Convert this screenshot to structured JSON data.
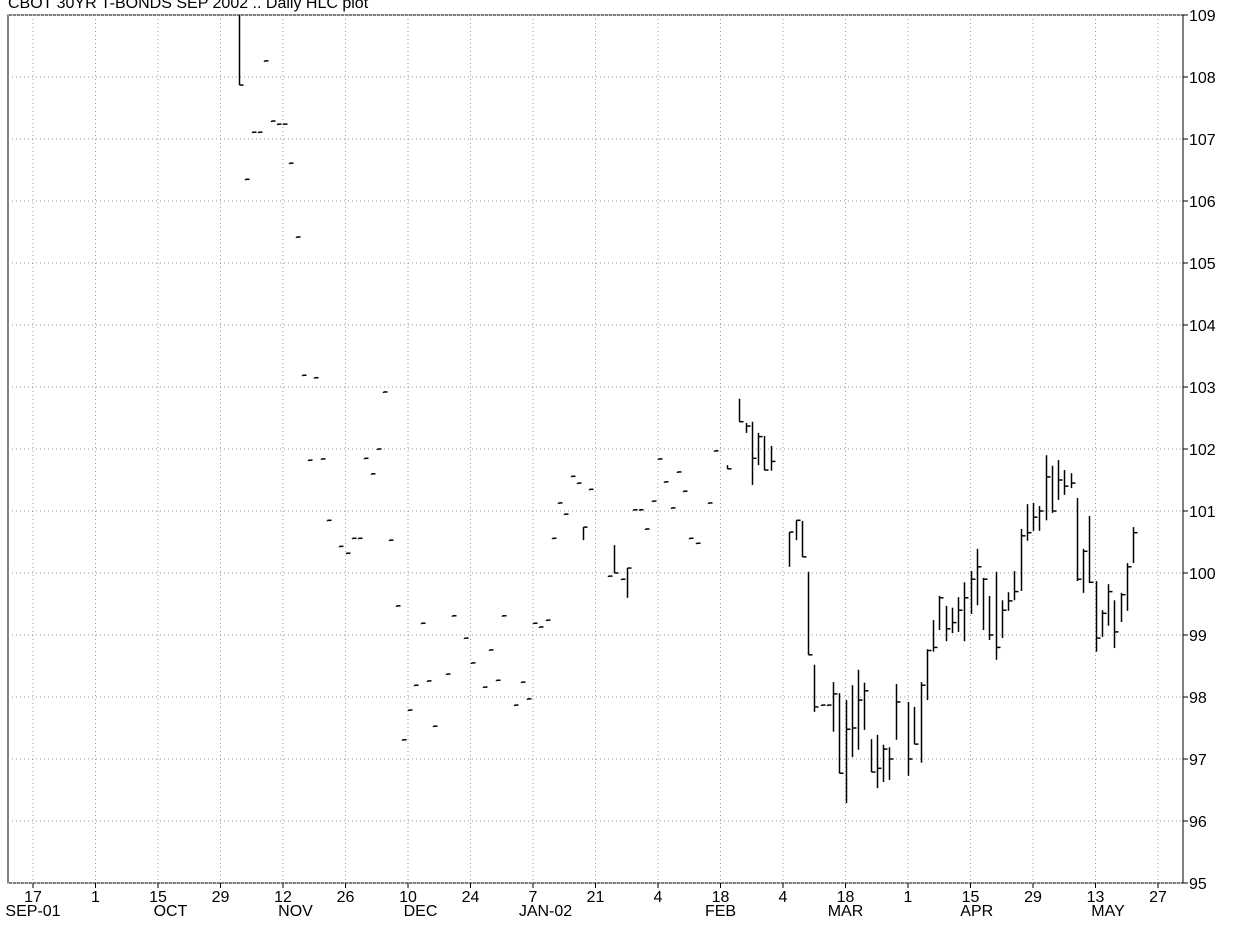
{
  "chart_data": {
    "type": "hlc",
    "title": "CBOT 30YR T-BONDS SEP 2002 .. Daily HLC plot",
    "x": [
      "2001-11-01",
      "2001-11-02",
      "2001-11-05",
      "2001-11-06",
      "2001-11-07",
      "2001-11-08",
      "2001-11-09",
      "2001-11-12",
      "2001-11-13",
      "2001-11-14",
      "2001-11-15",
      "2001-11-16",
      "2001-11-19",
      "2001-11-20",
      "2001-11-21",
      "2001-11-23",
      "2001-11-26",
      "2001-11-27",
      "2001-11-28",
      "2001-11-29",
      "2001-11-30",
      "2001-12-03",
      "2001-12-04",
      "2001-12-05",
      "2001-12-06",
      "2001-12-07",
      "2001-12-10",
      "2001-12-11",
      "2001-12-12",
      "2001-12-13",
      "2001-12-14",
      "2001-12-18",
      "2001-12-19",
      "2001-12-21",
      "2001-12-24",
      "2001-12-26",
      "2001-12-27",
      "2001-12-28",
      "2001-12-31",
      "2002-01-02",
      "2002-01-03",
      "2002-01-04",
      "2002-01-07",
      "2002-01-08",
      "2002-01-09",
      "2002-01-10",
      "2002-01-11",
      "2002-01-14",
      "2002-01-15",
      "2002-01-16",
      "2002-01-17",
      "2002-01-18",
      "2002-01-23",
      "2002-01-24",
      "2002-01-25",
      "2002-01-28",
      "2002-01-29",
      "2002-01-30",
      "2002-01-31",
      "2002-02-01",
      "2002-02-04",
      "2002-02-05",
      "2002-02-06",
      "2002-02-07",
      "2002-02-08",
      "2002-02-11",
      "2002-02-12",
      "2002-02-14",
      "2002-02-15",
      "2002-02-19",
      "2002-02-21",
      "2002-02-22",
      "2002-02-25",
      "2002-02-26",
      "2002-02-27",
      "2002-02-28",
      "2002-03-05",
      "2002-03-06",
      "2002-03-07",
      "2002-03-08",
      "2002-03-11",
      "2002-03-12",
      "2002-03-13",
      "2002-03-14",
      "2002-03-15",
      "2002-03-18",
      "2002-03-19",
      "2002-03-20",
      "2002-03-21",
      "2002-03-22",
      "2002-03-25",
      "2002-03-26",
      "2002-03-27",
      "2002-03-28",
      "2002-04-01",
      "2002-04-02",
      "2002-04-03",
      "2002-04-04",
      "2002-04-05",
      "2002-04-08",
      "2002-04-09",
      "2002-04-10",
      "2002-04-11",
      "2002-04-12",
      "2002-04-15",
      "2002-04-16",
      "2002-04-17",
      "2002-04-18",
      "2002-04-19",
      "2002-04-22",
      "2002-04-23",
      "2002-04-24",
      "2002-04-25",
      "2002-04-26",
      "2002-04-29",
      "2002-04-30",
      "2002-05-01",
      "2002-05-02",
      "2002-05-03",
      "2002-05-06",
      "2002-05-07",
      "2002-05-08",
      "2002-05-09",
      "2002-05-10",
      "2002-05-13",
      "2002-05-14",
      "2002-05-15",
      "2002-05-16",
      "2002-05-17",
      "2002-05-20",
      "2002-05-21"
    ],
    "high": [
      109,
      106.35,
      107.11,
      107.11,
      108.26,
      107.29,
      107.24,
      107.24,
      106.61,
      105.42,
      103.19,
      101.82,
      103.15,
      101.84,
      100.85,
      100.43,
      100.32,
      100.56,
      100.56,
      101.85,
      101.6,
      102,
      102.92,
      100.53,
      99.47,
      97.31,
      97.79,
      98.19,
      99.19,
      98.26,
      97.53,
      98.37,
      99.31,
      98.95,
      98.55,
      98.16,
      98.76,
      98.27,
      99.31,
      97.87,
      98.24,
      97.97,
      99.19,
      99.13,
      99.24,
      100.56,
      101.13,
      100.95,
      101.56,
      101.45,
      100.74,
      101.35,
      99.95,
      100.45,
      99.9,
      100.08,
      101.02,
      101.02,
      100.71,
      101.16,
      101.84,
      101.47,
      101.05,
      101.63,
      101.32,
      100.56,
      100.48,
      101.13,
      101.97,
      101.74,
      102.81,
      102.42,
      102.44,
      102.26,
      102.21,
      102.05,
      100.66,
      100.85,
      100.84,
      100.02,
      98.52,
      97.87,
      97.87,
      98.24,
      98.06,
      97.95,
      98.19,
      98.44,
      98.23,
      97.32,
      97.39,
      97.23,
      97.19,
      98.21,
      97.92,
      97.84,
      98.24,
      98.77,
      99.24,
      99.63,
      99.47,
      99.44,
      99.61,
      99.85,
      100.03,
      100.39,
      99.92,
      99.63,
      100.02,
      99.56,
      99.69,
      100.03,
      100.71,
      101.11,
      101.13,
      101.08,
      101.9,
      101.73,
      101.82,
      101.66,
      101.61,
      101.21,
      100.39,
      100.92,
      99.87,
      99.4,
      99.82,
      99.56,
      99.68,
      100.16,
      100.74
    ],
    "low": [
      107.87,
      106.35,
      107.11,
      107.11,
      108.26,
      107.29,
      107.24,
      107.24,
      106.61,
      105.42,
      103.19,
      101.82,
      103.15,
      101.84,
      100.85,
      100.43,
      100.32,
      100.56,
      100.56,
      101.85,
      101.6,
      102,
      102.92,
      100.53,
      99.47,
      97.31,
      97.79,
      98.19,
      99.19,
      98.26,
      97.53,
      98.37,
      99.31,
      98.95,
      98.55,
      98.16,
      98.76,
      98.27,
      99.31,
      97.87,
      98.24,
      97.97,
      99.19,
      99.13,
      99.24,
      100.56,
      101.13,
      100.95,
      101.56,
      101.45,
      100.53,
      101.35,
      99.95,
      100,
      99.9,
      99.6,
      101.02,
      101.02,
      100.71,
      101.16,
      101.84,
      101.47,
      101.05,
      101.63,
      101.32,
      100.56,
      100.48,
      101.13,
      101.97,
      101.68,
      102.44,
      102.26,
      101.42,
      101.74,
      101.66,
      101.65,
      100.1,
      100.53,
      100.26,
      98.68,
      97.76,
      97.87,
      97.87,
      97.44,
      96.77,
      96.29,
      97.03,
      97.15,
      97.47,
      96.79,
      96.53,
      96.63,
      96.66,
      97.31,
      96.73,
      97.24,
      96.94,
      97.95,
      98.73,
      99.08,
      98.9,
      99.03,
      99.05,
      98.9,
      99.34,
      99.48,
      99.08,
      98.92,
      98.6,
      98.95,
      99.39,
      99.56,
      99.71,
      100.52,
      100.68,
      100.68,
      100.85,
      100.97,
      101.18,
      101.26,
      101.37,
      99.87,
      99.68,
      99.84,
      98.73,
      98.97,
      99.15,
      98.79,
      99.21,
      99.39,
      100.16
    ],
    "close": [
      107.87,
      106.35,
      107.11,
      107.11,
      108.26,
      107.29,
      107.24,
      107.24,
      106.61,
      105.42,
      103.19,
      101.82,
      103.15,
      101.84,
      100.85,
      100.43,
      100.32,
      100.56,
      100.56,
      101.85,
      101.6,
      102,
      102.92,
      100.53,
      99.47,
      97.31,
      97.79,
      98.19,
      99.19,
      98.26,
      97.53,
      98.37,
      99.31,
      98.95,
      98.55,
      98.16,
      98.76,
      98.27,
      99.31,
      97.87,
      98.24,
      97.97,
      99.19,
      99.13,
      99.24,
      100.56,
      101.13,
      100.95,
      101.56,
      101.45,
      100.74,
      101.35,
      99.95,
      100,
      99.9,
      100.08,
      101.02,
      101.02,
      100.71,
      101.16,
      101.84,
      101.47,
      101.05,
      101.63,
      101.32,
      100.56,
      100.48,
      101.13,
      101.97,
      101.68,
      102.44,
      102.37,
      101.85,
      102.2,
      101.66,
      101.8,
      100.66,
      100.85,
      100.26,
      98.68,
      97.84,
      97.87,
      97.87,
      98.05,
      96.77,
      97.48,
      97.5,
      97.95,
      98.1,
      96.79,
      96.85,
      97.16,
      97,
      97.92,
      97,
      97.24,
      98.19,
      98.75,
      98.8,
      99.6,
      99.1,
      99.2,
      99.4,
      99.6,
      99.9,
      100.1,
      99.9,
      99,
      98.8,
      99.4,
      99.55,
      99.7,
      100.6,
      100.65,
      100.9,
      101,
      101.55,
      101,
      101.5,
      101.4,
      101.45,
      99.9,
      100.35,
      99.85,
      98.95,
      99.35,
      99.7,
      99.05,
      99.65,
      100.1,
      100.65
    ],
    "color": "#000000",
    "xlim": [
      "2001-09-11",
      "2002-05-31"
    ],
    "xticks": [
      {
        "value": "2001-09-17",
        "label": "17"
      },
      {
        "value": "2001-10-01",
        "label": "1"
      },
      {
        "value": "2001-10-15",
        "label": "15"
      },
      {
        "value": "2001-10-29",
        "label": "29"
      },
      {
        "value": "2001-11-12",
        "label": "12"
      },
      {
        "value": "2001-11-26",
        "label": "26"
      },
      {
        "value": "2001-12-10",
        "label": "10"
      },
      {
        "value": "2001-12-24",
        "label": "24"
      },
      {
        "value": "2002-01-07",
        "label": "7"
      },
      {
        "value": "2002-01-21",
        "label": "21"
      },
      {
        "value": "2002-02-04",
        "label": "4"
      },
      {
        "value": "2002-02-18",
        "label": "18"
      },
      {
        "value": "2002-03-04",
        "label": "4"
      },
      {
        "value": "2002-03-18",
        "label": "18"
      },
      {
        "value": "2002-04-01",
        "label": "1"
      },
      {
        "value": "2002-04-15",
        "label": "15"
      },
      {
        "value": "2002-04-29",
        "label": "29"
      },
      {
        "value": "2002-05-13",
        "label": "13"
      },
      {
        "value": "2002-05-27",
        "label": "27"
      }
    ],
    "month_labels": [
      {
        "value": "2001-09-17",
        "label": "SEP-01"
      },
      {
        "value": "2001-10-17",
        "label": "OCT"
      },
      {
        "value": "2001-11-14",
        "label": "NOV"
      },
      {
        "value": "2001-12-12",
        "label": "DEC"
      },
      {
        "value": "2002-01-09",
        "label": "JAN-02"
      },
      {
        "value": "2002-02-18",
        "label": "FEB"
      },
      {
        "value": "2002-03-18",
        "label": "MAR"
      },
      {
        "value": "2002-04-16",
        "label": "APR"
      },
      {
        "value": "2002-05-15",
        "label": "MAY"
      }
    ],
    "ylim": [
      95,
      109
    ],
    "yticks": [
      95,
      96,
      97,
      98,
      99,
      100,
      101,
      102,
      103,
      104,
      105,
      106,
      107,
      108,
      109
    ],
    "grid": true
  }
}
